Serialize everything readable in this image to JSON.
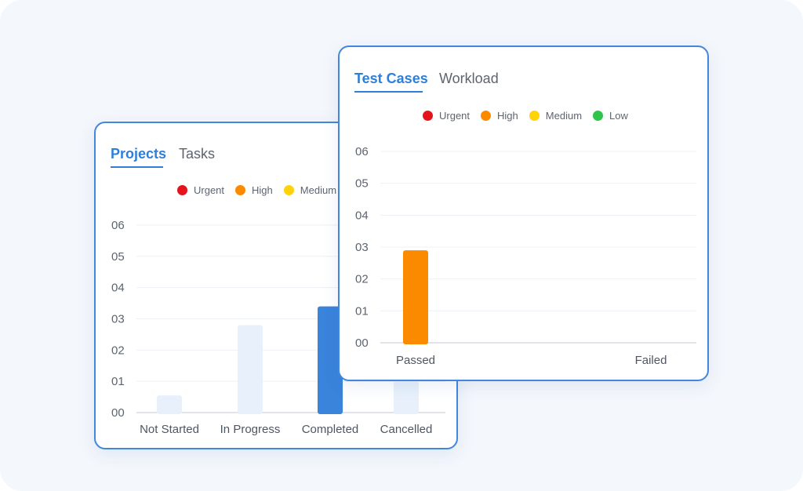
{
  "colors": {
    "accent": "#2f7fd8",
    "urgent": "#e5141c",
    "high": "#fb8a00",
    "medium": "#ffd20a",
    "low": "#2fc44a",
    "bar_light": "#e8f1fb",
    "bar_blue": "#3a84dc"
  },
  "projects_card": {
    "tabs": [
      {
        "label": "Projects",
        "active": true
      },
      {
        "label": "Tasks",
        "active": false
      }
    ],
    "legend": [
      {
        "label": "Urgent",
        "color": "urgent"
      },
      {
        "label": "High",
        "color": "high"
      },
      {
        "label": "Medium",
        "color": "medium"
      }
    ]
  },
  "tests_card": {
    "tabs": [
      {
        "label": "Test Cases",
        "active": true
      },
      {
        "label": "Workload",
        "active": false
      }
    ],
    "legend": [
      {
        "label": "Urgent",
        "color": "urgent"
      },
      {
        "label": "High",
        "color": "high"
      },
      {
        "label": "Medium",
        "color": "medium"
      },
      {
        "label": "Low",
        "color": "low"
      }
    ]
  },
  "chart_data": [
    {
      "type": "bar",
      "categories": [
        "Not Started",
        "In Progress",
        "Completed",
        "Cancelled"
      ],
      "values": [
        0.55,
        2.8,
        3.4,
        1.0
      ],
      "bar_colors": [
        "bar_light",
        "bar_light",
        "bar_blue",
        "bar_light"
      ],
      "yticks": [
        "00",
        "01",
        "02",
        "03",
        "04",
        "05",
        "06"
      ],
      "ylim": [
        0,
        6
      ],
      "grid": true,
      "title": "",
      "xlabel": "",
      "ylabel": ""
    },
    {
      "type": "bar",
      "categories": [
        "Passed",
        "Failed"
      ],
      "values": [
        2.9,
        0
      ],
      "bar_colors": [
        "high",
        "high"
      ],
      "yticks": [
        "00",
        "01",
        "02",
        "03",
        "04",
        "05",
        "06"
      ],
      "ylim": [
        0,
        6
      ],
      "grid": true,
      "title": "",
      "xlabel": "",
      "ylabel": ""
    }
  ]
}
